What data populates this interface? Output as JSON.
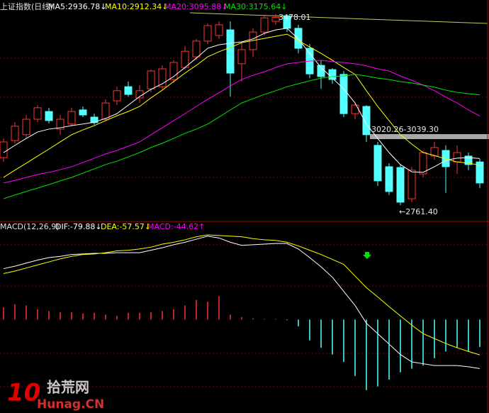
{
  "chart_data": [
    {
      "type": "candlestick",
      "title": "上证指数(日线)",
      "up_color": "#ff3232",
      "down_color": "#54ffff",
      "open": [
        2940,
        3004,
        3026,
        3084,
        3113,
        3047,
        3066,
        3119,
        3092,
        3084,
        3153,
        3206,
        3164,
        3198,
        3206,
        3233,
        3278,
        3318,
        3377,
        3398,
        3419,
        3292,
        3345,
        3411,
        3451,
        3472,
        3425,
        3350,
        3286,
        3270,
        3252,
        3105,
        3132,
        2986,
        2906,
        2903,
        2786,
        2879,
        2946,
        2967,
        2924,
        2946,
        2924
      ],
      "high": [
        3012,
        3073,
        3100,
        3137,
        3127,
        3100,
        3127,
        3132,
        3105,
        3159,
        3206,
        3225,
        3212,
        3270,
        3286,
        3305,
        3358,
        3385,
        3443,
        3451,
        3451,
        3371,
        3425,
        3472,
        3478.01,
        3475,
        3438,
        3366,
        3305,
        3276,
        3265,
        3145,
        3137,
        2999,
        2919,
        2914,
        2906,
        2967,
        2999,
        2986,
        2986,
        2959,
        2935
      ],
      "low": [
        2924,
        2994,
        3015,
        3073,
        3068,
        3026,
        3058,
        3092,
        3063,
        3079,
        3137,
        3169,
        3145,
        3185,
        3196,
        3220,
        3270,
        3305,
        3366,
        3385,
        3169,
        3225,
        3318,
        3398,
        3438,
        3411,
        3331,
        3238,
        3198,
        3217,
        3092,
        3084,
        2999,
        2834,
        2800,
        2761.4,
        2773,
        2866,
        2932,
        2808,
        2879,
        2893,
        2826
      ],
      "close": [
        2999,
        3058,
        3084,
        3127,
        3079,
        3084,
        3113,
        3100,
        3071,
        3145,
        3191,
        3177,
        3191,
        3265,
        3273,
        3297,
        3339,
        3377,
        3435,
        3438,
        3257,
        3345,
        3411,
        3464,
        3466,
        3425,
        3350,
        3254,
        3244,
        3233,
        3105,
        3137,
        3026,
        2853,
        2813,
        2773,
        2893,
        2959,
        2978,
        2906,
        2959,
        2914,
        2845
      ],
      "series": [
        {
          "name": "MA5:2936.78↓",
          "color": "#ffffff",
          "values": [
            2959,
            2986,
            3012,
            3036,
            3047,
            3052,
            3060,
            3066,
            3073,
            3087,
            3105,
            3137,
            3169,
            3196,
            3217,
            3244,
            3278,
            3313,
            3350,
            3363,
            3369,
            3374,
            3385,
            3406,
            3419,
            3425,
            3385,
            3331,
            3278,
            3238,
            3198,
            3145,
            3066,
            3012,
            2959,
            2914,
            2887,
            2885,
            2906,
            2930,
            2938,
            2940,
            2936.78
          ]
        },
        {
          "name": "MA10:2912.34↓",
          "color": "#ffff00",
          "values": [
            2866,
            2893,
            2919,
            2946,
            2972,
            2999,
            3026,
            3044,
            3060,
            3079,
            3097,
            3113,
            3132,
            3164,
            3193,
            3225,
            3257,
            3286,
            3318,
            3337,
            3353,
            3371,
            3379,
            3387,
            3395,
            3403,
            3379,
            3355,
            3331,
            3305,
            3278,
            3252,
            3191,
            3132,
            3079,
            3026,
            2991,
            2959,
            2948,
            2935,
            2924,
            2919,
            2912.34
          ]
        },
        {
          "name": "MA20:3095.88↓",
          "color": "#ff00ff",
          "values": [
            2845,
            2855,
            2866,
            2877,
            2885,
            2895,
            2906,
            2922,
            2938,
            2954,
            2967,
            2983,
            2999,
            3026,
            3052,
            3079,
            3105,
            3132,
            3159,
            3183,
            3209,
            3233,
            3249,
            3262,
            3278,
            3292,
            3297,
            3302,
            3305,
            3300,
            3297,
            3292,
            3284,
            3273,
            3265,
            3246,
            3230,
            3212,
            3191,
            3167,
            3145,
            3119,
            3095.88
          ]
        },
        {
          "name": "MA30:3175.64↓",
          "color": "#00e600",
          "values": [
            2786,
            2800,
            2813,
            2826,
            2839,
            2853,
            2866,
            2882,
            2898,
            2914,
            2927,
            2943,
            2959,
            2978,
            2994,
            3012,
            3031,
            3047,
            3066,
            3092,
            3119,
            3145,
            3161,
            3177,
            3191,
            3206,
            3217,
            3228,
            3238,
            3244,
            3246,
            3252,
            3246,
            3238,
            3233,
            3225,
            3220,
            3212,
            3204,
            3193,
            3185,
            3180,
            3175.64
          ]
        }
      ],
      "ylim": [
        2701,
        3531
      ],
      "annotations": [
        "3478.01",
        "3020.26-3039.30",
        "←2761.40"
      ]
    },
    {
      "type": "macd",
      "title": "MACD(12,26,9)",
      "series": [
        {
          "name": "DIF:-79.88↓",
          "color": "#ffffff",
          "values": [
            83,
            87,
            92,
            97,
            101,
            103,
            106,
            107,
            108,
            108,
            109,
            109,
            109,
            113,
            117,
            122,
            126,
            131,
            136,
            133,
            126,
            121,
            122,
            123,
            124,
            124,
            115,
            101,
            86,
            69,
            46,
            23,
            -6,
            -23,
            -40,
            -57,
            -69,
            -72,
            -75,
            -75,
            -75,
            -77,
            -79.88
          ]
        },
        {
          "name": "DEA:-57.57↓",
          "color": "#ffff00",
          "values": [
            75,
            79,
            84,
            89,
            94,
            99,
            103,
            106,
            107,
            109,
            112,
            113,
            115,
            118,
            123,
            126,
            130,
            135,
            138,
            137,
            136,
            135,
            132,
            130,
            129,
            126,
            120,
            113,
            106,
            98,
            90,
            71,
            52,
            37,
            21,
            6,
            -9,
            -23,
            -31,
            -39,
            -46,
            -52,
            -57.57
          ]
        }
      ],
      "histogram": {
        "name": "MACD:-44.62↑",
        "color": "#ff00ff",
        "up_color": "#ff3232",
        "down_color": "#54ffff",
        "values": [
          20,
          25,
          23,
          17,
          14,
          12,
          12,
          10,
          11,
          8,
          6,
          11,
          11,
          12,
          14,
          17,
          23,
          32,
          29,
          38,
          8,
          4,
          2,
          1,
          1,
          -1,
          -11,
          -34,
          -46,
          -57,
          -69,
          -92,
          -115,
          -109,
          -98,
          -86,
          -80,
          -75,
          -63,
          -52,
          -46,
          -52,
          -44.62
        ]
      },
      "ylim": [
        -150,
        160
      ]
    }
  ],
  "watermark": {
    "logo": "10",
    "name": "拾荒网",
    "site": "Hunag.CN"
  }
}
